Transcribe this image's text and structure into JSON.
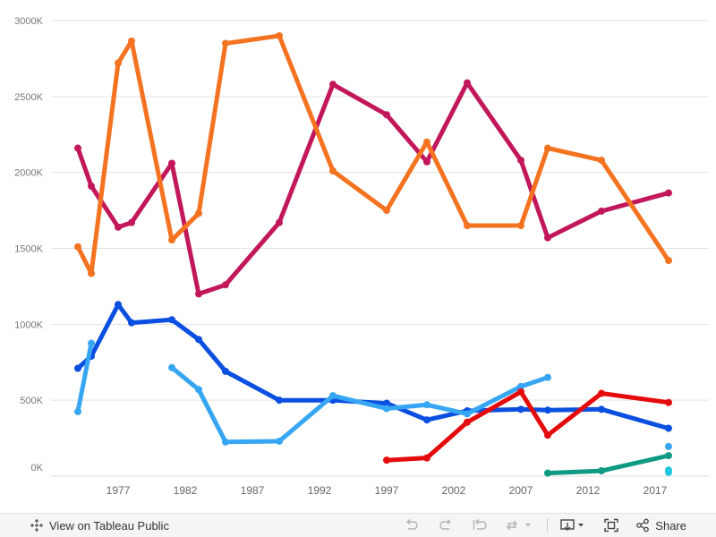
{
  "chart_data": {
    "type": "line",
    "title": "",
    "xlabel": "",
    "ylabel": "",
    "xlim": [
      1972,
      2021
    ],
    "ylim": [
      0,
      3000000
    ],
    "y_ticks": [
      {
        "value": 0,
        "label": "0K"
      },
      {
        "value": 500000,
        "label": "500K"
      },
      {
        "value": 1000000,
        "label": "1000K"
      },
      {
        "value": 1500000,
        "label": "1500K"
      },
      {
        "value": 2000000,
        "label": "2000K"
      },
      {
        "value": 2500000,
        "label": "2500K"
      },
      {
        "value": 3000000,
        "label": "3000K"
      }
    ],
    "x_ticks": [
      {
        "value": 1977,
        "label": "1977"
      },
      {
        "value": 1982,
        "label": "1982"
      },
      {
        "value": 1987,
        "label": "1987"
      },
      {
        "value": 1992,
        "label": "1992"
      },
      {
        "value": 1997,
        "label": "1997"
      },
      {
        "value": 2002,
        "label": "2002"
      },
      {
        "value": 2007,
        "label": "2007"
      },
      {
        "value": 2012,
        "label": "2012"
      },
      {
        "value": 2017,
        "label": "2017"
      }
    ],
    "grid": true,
    "legend": "none",
    "series": [
      {
        "color": "#c2185b",
        "points": [
          [
            1974,
            2160000
          ],
          [
            1975,
            1910000
          ],
          [
            1977,
            1640000
          ],
          [
            1978,
            1670000
          ],
          [
            1981,
            2060000
          ],
          [
            1983,
            1200000
          ],
          [
            1985,
            1260000
          ],
          [
            1989,
            1670000
          ],
          [
            1993,
            2580000
          ],
          [
            1997,
            2380000
          ],
          [
            2000,
            2070000
          ],
          [
            2003,
            2590000
          ],
          [
            2007,
            2080000
          ],
          [
            2009,
            1570000
          ],
          [
            2013,
            1745000
          ],
          [
            2018,
            1865000
          ]
        ]
      },
      {
        "color": "#f47321",
        "points": [
          [
            1974,
            1510000
          ],
          [
            1975,
            1335000
          ],
          [
            1977,
            2720000
          ],
          [
            1978,
            2865000
          ],
          [
            1981,
            1555000
          ],
          [
            1983,
            1730000
          ],
          [
            1985,
            2850000
          ],
          [
            1989,
            2900000
          ],
          [
            1993,
            2010000
          ],
          [
            1997,
            1750000
          ],
          [
            2000,
            2200000
          ],
          [
            2003,
            1650000
          ],
          [
            2007,
            1650000
          ],
          [
            2009,
            2160000
          ],
          [
            2013,
            2080000
          ],
          [
            2018,
            1420000
          ]
        ]
      },
      {
        "color": "#0a4fe0",
        "points": [
          [
            1974,
            710000
          ],
          [
            1975,
            790000
          ],
          [
            1977,
            1130000
          ],
          [
            1978,
            1010000
          ],
          [
            1981,
            1030000
          ],
          [
            1983,
            900000
          ],
          [
            1985,
            690000
          ],
          [
            1989,
            500000
          ],
          [
            1993,
            500000
          ],
          [
            1997,
            480000
          ],
          [
            2000,
            370000
          ],
          [
            2003,
            430000
          ],
          [
            2007,
            440000
          ],
          [
            2009,
            435000
          ],
          [
            2013,
            440000
          ],
          [
            2018,
            315000
          ]
        ]
      },
      {
        "color": "#36a6f2",
        "points": [
          [
            1974,
            425000
          ],
          [
            1975,
            875000
          ]
        ]
      },
      {
        "color": "#36a6f2",
        "points": [
          [
            1981,
            715000
          ],
          [
            1983,
            570000
          ],
          [
            1985,
            225000
          ],
          [
            1989,
            230000
          ],
          [
            1993,
            530000
          ],
          [
            1997,
            445000
          ],
          [
            2000,
            470000
          ],
          [
            2003,
            410000
          ],
          [
            2007,
            590000
          ],
          [
            2009,
            650000
          ]
        ]
      },
      {
        "color": "#e30b0b",
        "points": [
          [
            1997,
            105000
          ],
          [
            2000,
            120000
          ],
          [
            2003,
            355000
          ],
          [
            2007,
            555000
          ],
          [
            2009,
            270000
          ],
          [
            2013,
            545000
          ],
          [
            2018,
            485000
          ]
        ]
      },
      {
        "color": "#0e9a83",
        "points": [
          [
            2009,
            20000
          ],
          [
            2013,
            35000
          ],
          [
            2018,
            135000
          ]
        ]
      },
      {
        "color": "#36a6f2",
        "points": [
          [
            2018,
            195000
          ]
        ]
      },
      {
        "color": "#1ec8e0",
        "points": [
          [
            2018,
            40000
          ],
          [
            2018,
            25000
          ]
        ]
      }
    ]
  },
  "toolbar": {
    "view_label": "View on Tableau Public",
    "share_label": "Share",
    "view_icon": "tableau-logo-icon",
    "undo_icon": "undo-icon",
    "redo_icon": "redo-icon",
    "revert_icon": "revert-icon",
    "refresh_icon": "refresh-icon",
    "download_icon": "download-icon",
    "fullscreen_icon": "fullscreen-icon",
    "share_icon": "share-icon"
  }
}
